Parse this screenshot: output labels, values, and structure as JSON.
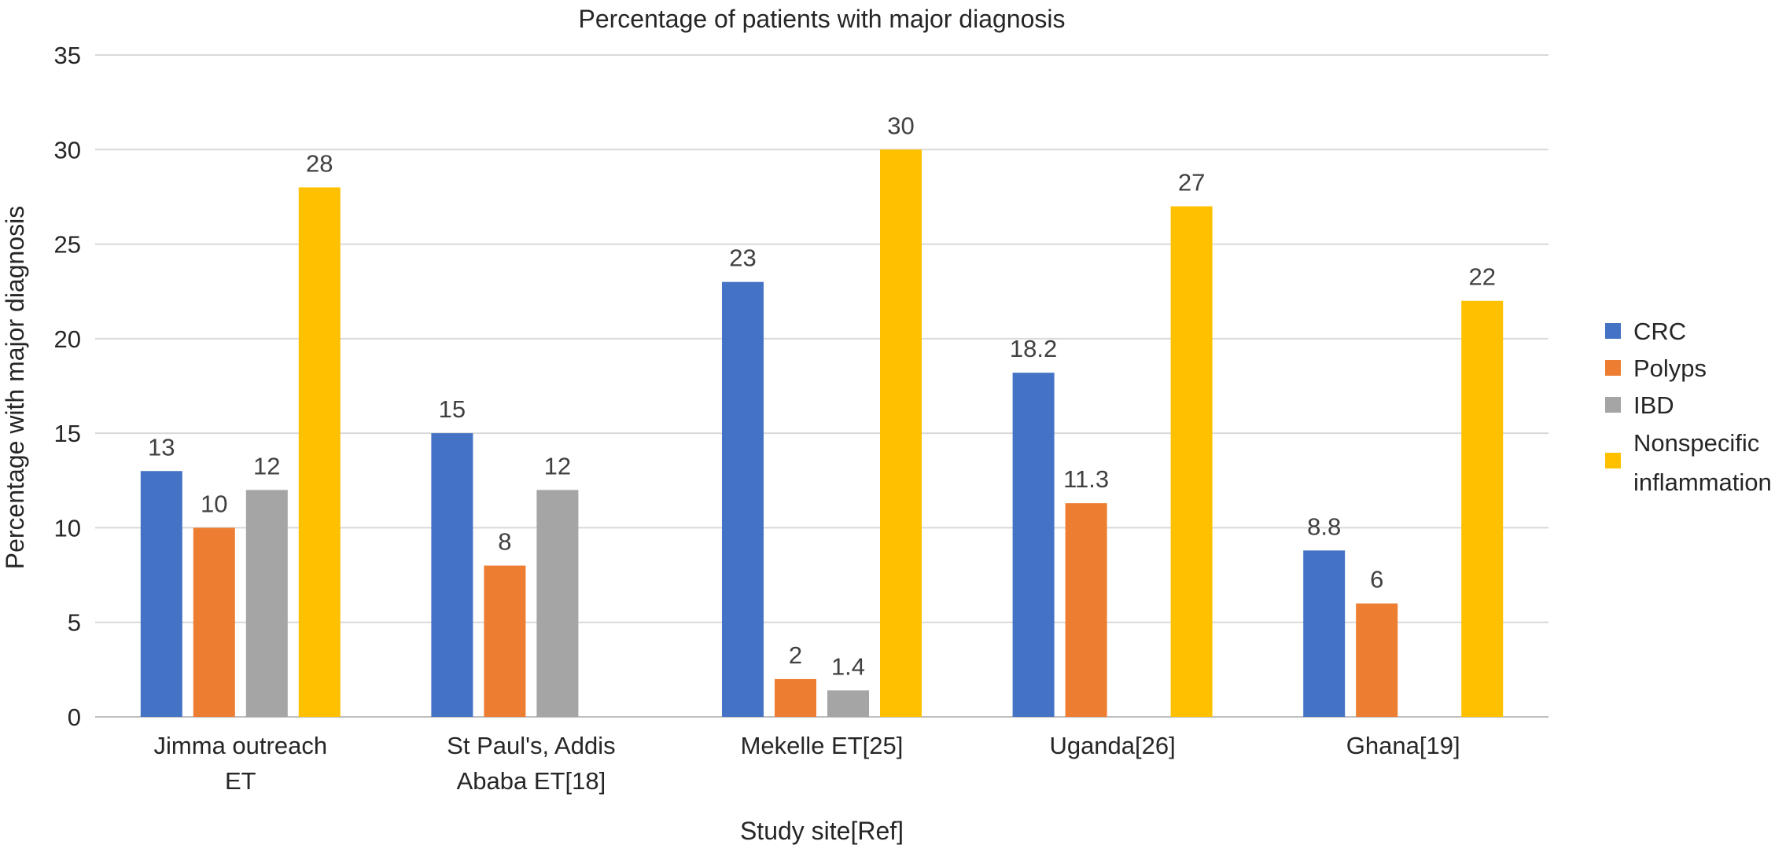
{
  "chart_data": {
    "type": "bar",
    "title": "Percentage of patients with major diagnosis",
    "xlabel": "Study site[Ref]",
    "ylabel": "Percentage with major diagnosis",
    "ylim": [
      0,
      35
    ],
    "yticks": [
      0,
      5,
      10,
      15,
      20,
      25,
      30,
      35
    ],
    "grid": true,
    "legend_position": "right",
    "categories": [
      [
        "Jimma outreach",
        "ET"
      ],
      [
        "St Paul's, Addis",
        "Ababa ET[18]"
      ],
      [
        "Mekelle ET[25]"
      ],
      [
        "Uganda[26]"
      ],
      [
        "Ghana[19]"
      ]
    ],
    "series": [
      {
        "name": "CRC",
        "legend_lines": [
          "CRC"
        ],
        "color": "#4472C4",
        "values": [
          13,
          15,
          23,
          18.2,
          8.8
        ]
      },
      {
        "name": "Polyps",
        "legend_lines": [
          "Polyps"
        ],
        "color": "#ED7D31",
        "values": [
          10,
          8,
          2,
          11.3,
          6
        ]
      },
      {
        "name": "IBD",
        "legend_lines": [
          "IBD"
        ],
        "color": "#A5A5A5",
        "values": [
          12,
          12,
          1.4,
          null,
          null
        ]
      },
      {
        "name": "Nonspecific inflammation",
        "legend_lines": [
          "Nonspecific",
          "inflammation"
        ],
        "color": "#FFC000",
        "values": [
          28,
          null,
          30,
          27,
          22
        ]
      }
    ]
  }
}
